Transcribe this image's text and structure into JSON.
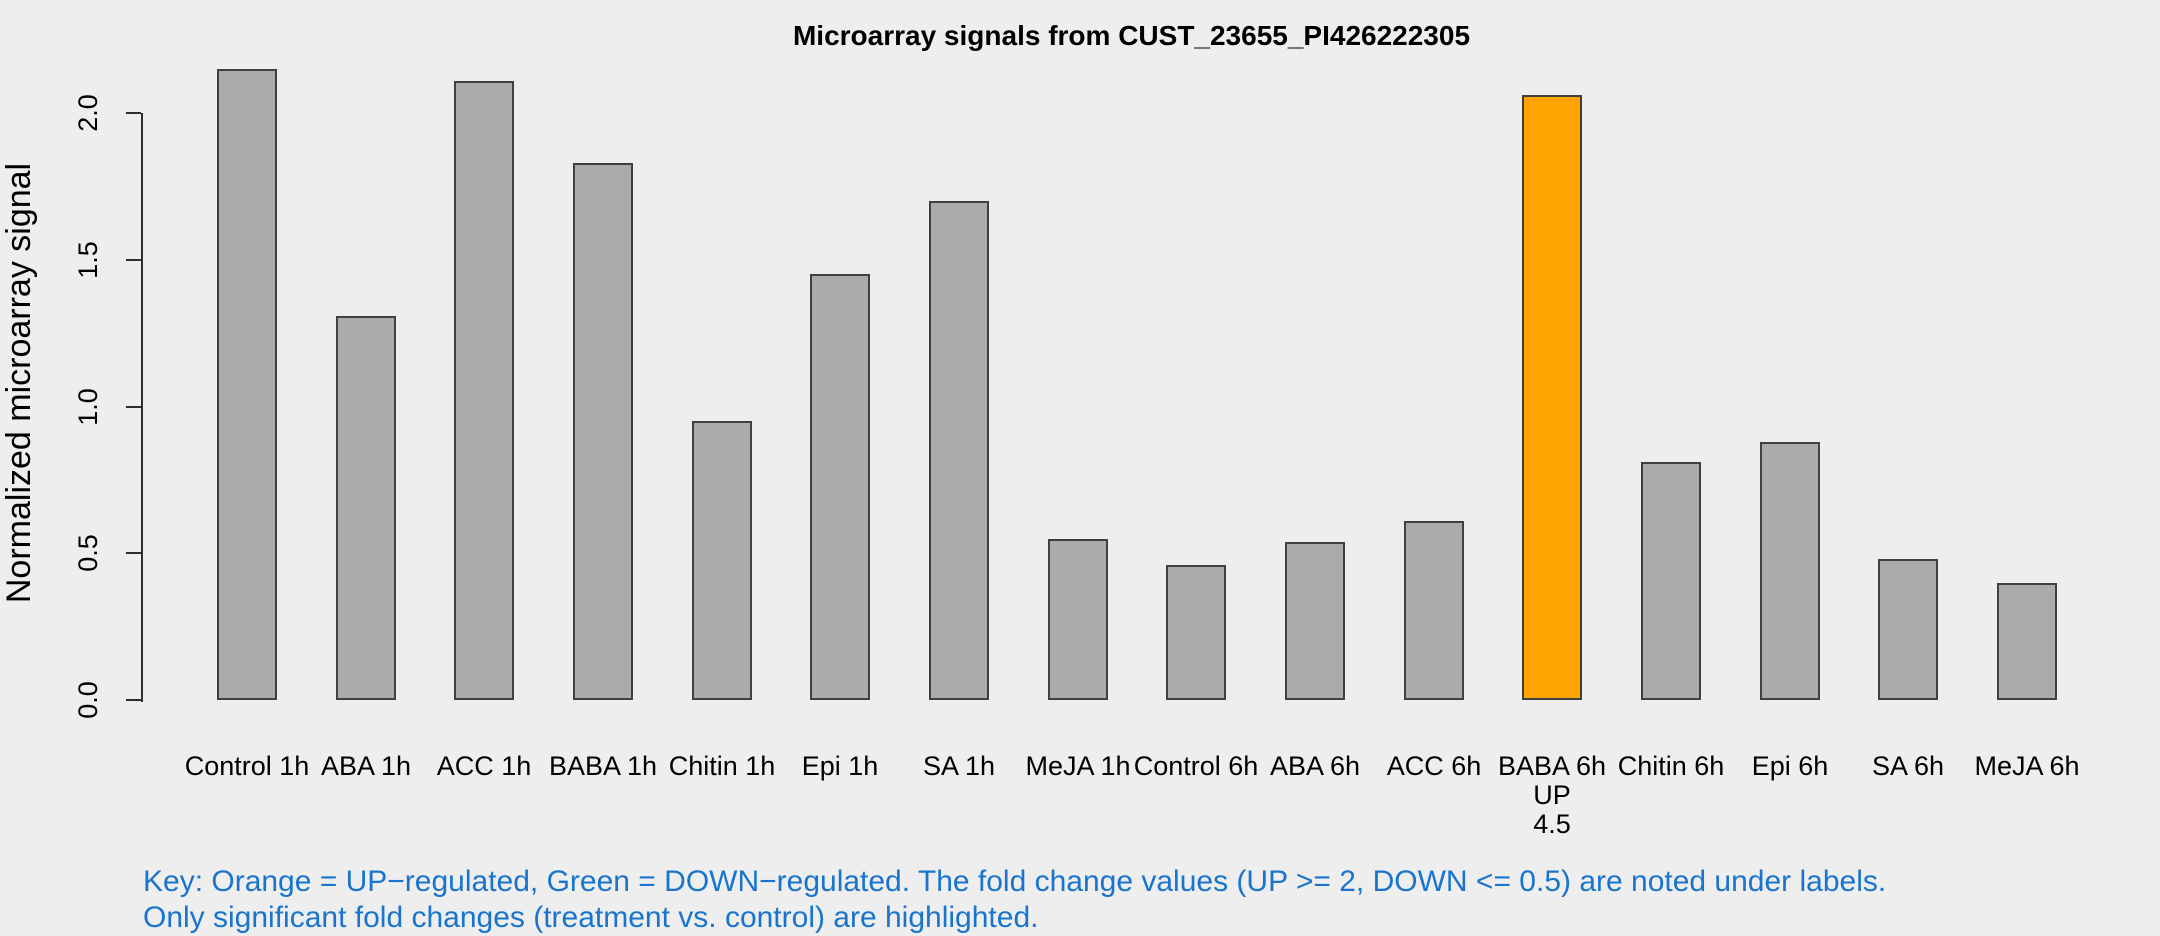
{
  "chart_data": {
    "type": "bar",
    "title": "Microarray signals from CUST_23655_PI426222305",
    "ylabel": "Normalized microarray signal",
    "xlabel": "",
    "ylim": [
      0,
      2.2
    ],
    "yticks": [
      0,
      0.5,
      1,
      1.5,
      2
    ],
    "ytick_labels": [
      "0.0",
      "0.5",
      "1.0",
      "1.5",
      "2.0"
    ],
    "grid": false,
    "legend_position": "none",
    "categories": [
      "Control 1h",
      "ABA 1h",
      "ACC 1h",
      "BABA 1h",
      "Chitin 1h",
      "Epi 1h",
      "SA 1h",
      "MeJA 1h",
      "Control 6h",
      "ABA 6h",
      "ACC 6h",
      "BABA 6h",
      "Chitin 6h",
      "Epi 6h",
      "SA 6h",
      "MeJA 6h"
    ],
    "values": [
      2.15,
      1.31,
      2.11,
      1.83,
      0.95,
      1.45,
      1.7,
      0.55,
      0.46,
      0.54,
      0.61,
      2.06,
      0.81,
      0.88,
      0.48,
      0.4
    ],
    "bar_annotations": [
      {
        "index": 11,
        "lines": [
          "UP",
          "4.5"
        ]
      }
    ],
    "highlights": [
      {
        "index": 11,
        "color": "#FFA500"
      }
    ]
  },
  "key": {
    "line1": "Key: Orange = UP−regulated, Green = DOWN−regulated. The fold change values (UP >= 2, DOWN <= 0.5) are noted under labels.",
    "line2": "Only significant fold changes (treatment vs. control) are highlighted."
  },
  "colors": {
    "background": "#EEEEEE",
    "bar_fill": "#ABABAB",
    "bar_border": "#404040",
    "highlight_fill": "#FFA500",
    "axis": "#2E2E2E",
    "text": "#000000",
    "key_text": "#1874CD"
  }
}
